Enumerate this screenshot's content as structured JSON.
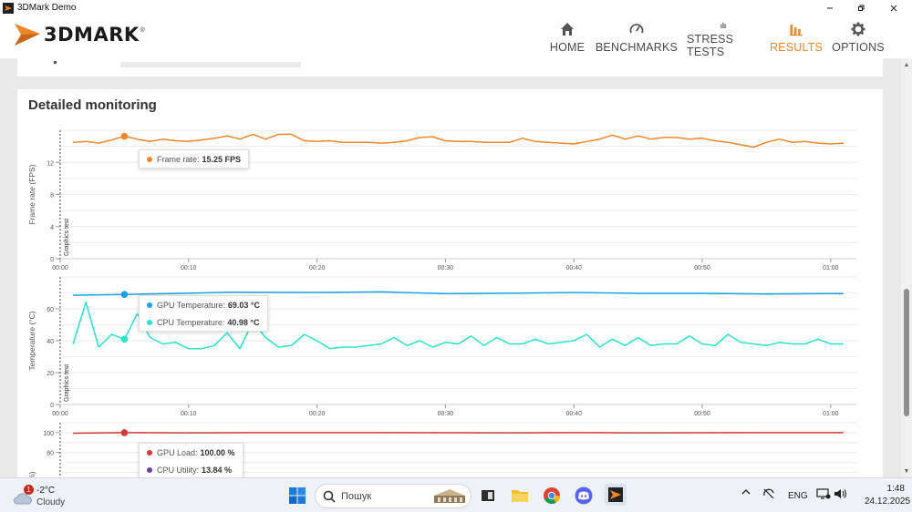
{
  "window": {
    "title": "3DMark Demo"
  },
  "brand": {
    "logo_text": "3DMARK",
    "accent": "#f0862a"
  },
  "nav": {
    "items": [
      {
        "label": "HOME",
        "icon": "home-icon",
        "active": false
      },
      {
        "label": "BENCHMARKS",
        "icon": "gauge-icon",
        "active": false
      },
      {
        "label": "STRESS TESTS",
        "icon": "bars-icon",
        "active": false
      },
      {
        "label": "RESULTS",
        "icon": "bar-chart-icon",
        "active": true
      },
      {
        "label": "OPTIONS",
        "icon": "gear-icon",
        "active": false
      }
    ]
  },
  "section": {
    "title": "Detailed monitoring"
  },
  "chart_data": [
    {
      "type": "line",
      "ylabel": "Frame rate (FPS)",
      "phase_label": "Graphics test",
      "ylim": [
        0,
        16
      ],
      "yticks": [
        0,
        4,
        8,
        12
      ],
      "xlim": [
        0,
        62
      ],
      "xticks": [
        "00:00",
        "00:10",
        "00:20",
        "00:30",
        "00:40",
        "00:50",
        "01:00"
      ],
      "grid": true,
      "series": [
        {
          "name": "Frame rate",
          "color": "#f0862a",
          "x": [
            1,
            2,
            3,
            4,
            5,
            6,
            7,
            8,
            9,
            10,
            11,
            12,
            13,
            14,
            15,
            16,
            17,
            18,
            19,
            20,
            21,
            22,
            23,
            24,
            25,
            26,
            27,
            28,
            29,
            30,
            31,
            32,
            33,
            34,
            35,
            36,
            37,
            38,
            39,
            40,
            41,
            42,
            43,
            44,
            45,
            46,
            47,
            48,
            49,
            50,
            51,
            52,
            53,
            54,
            55,
            56,
            57,
            58,
            59,
            60,
            61
          ],
          "values": [
            14.5,
            14.6,
            14.4,
            14.8,
            15.25,
            14.9,
            14.6,
            14.9,
            14.7,
            14.6,
            14.8,
            15.0,
            15.3,
            14.9,
            15.5,
            14.9,
            15.5,
            15.5,
            14.7,
            14.6,
            14.7,
            14.5,
            14.5,
            14.5,
            14.4,
            14.5,
            14.7,
            15.1,
            15.2,
            14.7,
            14.6,
            14.6,
            14.5,
            14.5,
            14.5,
            15.0,
            14.6,
            14.5,
            14.4,
            14.3,
            14.6,
            14.9,
            15.4,
            14.9,
            15.3,
            14.9,
            15.1,
            15.1,
            14.9,
            15.0,
            14.7,
            14.5,
            14.2,
            13.9,
            14.5,
            14.9,
            14.5,
            14.6,
            14.4,
            14.3,
            14.4
          ]
        }
      ],
      "tooltip": [
        {
          "label": "Frame rate:",
          "value": "15.25 FPS",
          "color": "#f0862a"
        }
      ],
      "cursor_x": 5
    },
    {
      "type": "line",
      "ylabel": "Temperature (°C)",
      "phase_label": "Graphics test",
      "ylim": [
        0,
        80
      ],
      "yticks": [
        0,
        20,
        40,
        60
      ],
      "xlim": [
        0,
        62
      ],
      "xticks": [
        "00:00",
        "00:10",
        "00:20",
        "00:30",
        "00:40",
        "00:50",
        "01:00"
      ],
      "grid": true,
      "series": [
        {
          "name": "GPU Temperature",
          "color": "#1aa3e3",
          "x": [
            1,
            5,
            10,
            13,
            20,
            25,
            30,
            35,
            40,
            45,
            50,
            55,
            61
          ],
          "values": [
            68.5,
            69.03,
            69.8,
            70.4,
            70.3,
            70.6,
            69.5,
            69.8,
            70.2,
            69.7,
            69.7,
            69.3,
            69.6
          ]
        },
        {
          "name": "CPU Temperature",
          "color": "#2de2c6",
          "x": [
            1,
            2,
            3,
            4,
            5,
            6,
            7,
            8,
            9,
            10,
            11,
            12,
            13,
            14,
            15,
            16,
            17,
            18,
            19,
            20,
            21,
            22,
            23,
            24,
            25,
            26,
            27,
            28,
            29,
            30,
            31,
            32,
            33,
            34,
            35,
            36,
            37,
            38,
            39,
            40,
            41,
            42,
            43,
            44,
            45,
            46,
            47,
            48,
            49,
            50,
            51,
            52,
            53,
            54,
            55,
            56,
            57,
            58,
            59,
            60,
            61
          ],
          "values": [
            38,
            64,
            36,
            44,
            40.98,
            57,
            42,
            38,
            39,
            35,
            35,
            37,
            45,
            35,
            52,
            42,
            36,
            37,
            44,
            40,
            35,
            36,
            36,
            37,
            38,
            42,
            37,
            40,
            36,
            39,
            38,
            43,
            37,
            42,
            38,
            38,
            41,
            38,
            39,
            40,
            44,
            36,
            41,
            37,
            42,
            37,
            38,
            38,
            43,
            38,
            37,
            44,
            39,
            38,
            37,
            39,
            38,
            38,
            41,
            38,
            38
          ]
        }
      ],
      "tooltip": [
        {
          "label": "GPU Temperature:",
          "value": "69.03 °C",
          "color": "#1aa3e3"
        },
        {
          "label": "CPU Temperature:",
          "value": "40.98 °C",
          "color": "#2de2c6"
        }
      ],
      "cursor_x": 5
    },
    {
      "type": "line",
      "ylabel": "(%)",
      "ylim": [
        0,
        110
      ],
      "yticks": [
        80,
        100
      ],
      "xlim": [
        0,
        62
      ],
      "grid": true,
      "series": [
        {
          "name": "GPU Load",
          "color": "#d23a3a",
          "x": [
            1,
            5,
            10,
            15,
            20,
            25,
            30,
            35,
            40,
            45,
            50,
            55,
            61
          ],
          "values": [
            99.5,
            100.0,
            99.8,
            100.0,
            100.0,
            100.0,
            99.9,
            99.8,
            100.0,
            99.8,
            99.9,
            100.0,
            100.0
          ]
        }
      ],
      "tooltip": [
        {
          "label": "GPU Load:",
          "value": "100.00 %",
          "color": "#d23a3a"
        },
        {
          "label": "CPU Utility:",
          "value": "13.84 %",
          "color": "#6a3fa0"
        }
      ],
      "cursor_x": 5
    }
  ],
  "taskbar": {
    "weather": {
      "temp": "-2°C",
      "condition": "Cloudy",
      "badge": "1"
    },
    "search_placeholder": "Пошук",
    "language": "ENG",
    "time": "1:48",
    "date": "24.12.2025"
  }
}
